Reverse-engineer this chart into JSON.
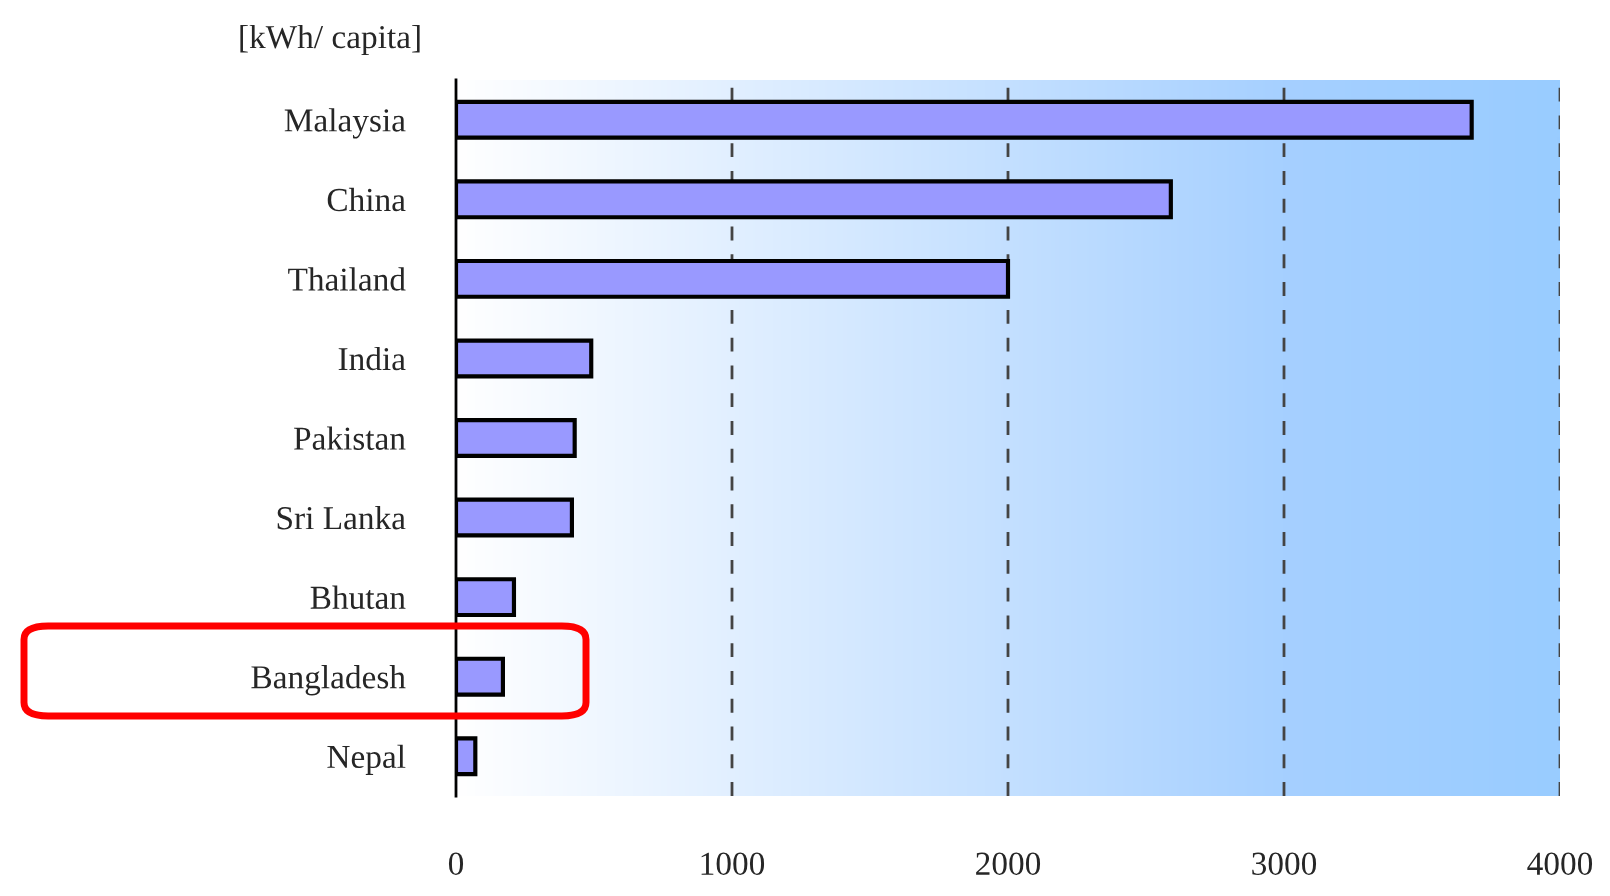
{
  "chart_data": {
    "type": "bar",
    "orientation": "horizontal",
    "ylabel": "[kWh/ capita]",
    "categories": [
      "Malaysia",
      "China",
      "Thailand",
      "India",
      "Pakistan",
      "Sri Lanka",
      "Bhutan",
      "Bangladesh",
      "Nepal"
    ],
    "values": [
      3680,
      2590,
      2000,
      490,
      430,
      420,
      210,
      170,
      70
    ],
    "color": "#9999ff",
    "xlim": [
      0,
      4000
    ],
    "xticks": [
      0,
      1000,
      2000,
      3000,
      4000
    ],
    "grid": "x"
  }
}
